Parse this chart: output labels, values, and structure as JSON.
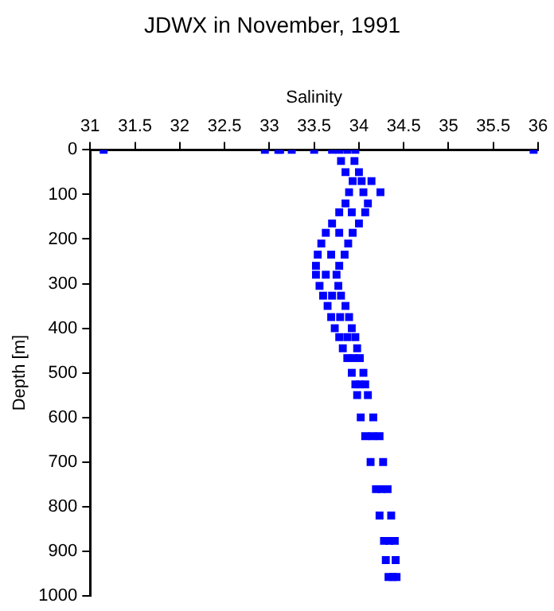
{
  "chart_data": {
    "type": "scatter",
    "title": "JDWX in November, 1991",
    "xlabel": "Salinity",
    "ylabel": "Depth [m]",
    "xlim": [
      31,
      36
    ],
    "xticks": [
      31,
      31.5,
      32,
      32.5,
      33,
      33.5,
      34,
      34.5,
      35,
      35.5,
      36
    ],
    "ylim": [
      1000,
      0
    ],
    "yticks": [
      0,
      100,
      200,
      300,
      400,
      500,
      600,
      700,
      800,
      900,
      1000
    ],
    "grid": false,
    "legend": false,
    "marker": "square",
    "series": [
      {
        "color": "#0000ff",
        "x": [
          31.15,
          32.95,
          33.1,
          33.12,
          33.25,
          33.5,
          33.7,
          35.95,
          33.78,
          33.87,
          33.96,
          33.8,
          33.95,
          33.85,
          34.0,
          33.93,
          34.03,
          34.14,
          33.89,
          34.05,
          34.24,
          33.85,
          34.1,
          33.78,
          33.92,
          34.07,
          33.7,
          34.0,
          33.63,
          33.78,
          33.93,
          33.58,
          33.88,
          33.54,
          33.69,
          33.84,
          33.52,
          33.78,
          33.52,
          33.63,
          33.75,
          33.56,
          33.77,
          33.6,
          33.7,
          33.8,
          33.65,
          33.85,
          33.69,
          33.79,
          33.89,
          33.73,
          33.92,
          33.78,
          33.87,
          33.96,
          33.82,
          33.98,
          33.87,
          33.94,
          34.01,
          33.92,
          34.05,
          33.96,
          34.01,
          34.07,
          33.98,
          34.1,
          34.02,
          34.16,
          34.07,
          34.15,
          34.23,
          34.13,
          34.27,
          34.19,
          34.25,
          34.32,
          34.23,
          34.36,
          34.28,
          34.34,
          34.4,
          34.3,
          34.41,
          34.33,
          34.38,
          34.42
        ],
        "values": [
          0,
          0,
          0,
          0,
          0,
          0,
          0,
          0,
          0,
          0,
          0,
          25,
          25,
          50,
          50,
          70,
          70,
          70,
          95,
          95,
          95,
          120,
          120,
          140,
          140,
          140,
          165,
          165,
          186,
          186,
          186,
          210,
          210,
          235,
          235,
          235,
          260,
          260,
          280,
          280,
          280,
          305,
          305,
          327,
          327,
          327,
          350,
          350,
          375,
          375,
          375,
          400,
          400,
          420,
          420,
          420,
          445,
          445,
          467,
          467,
          467,
          500,
          500,
          526,
          526,
          526,
          550,
          550,
          600,
          600,
          642,
          642,
          642,
          700,
          700,
          761,
          761,
          761,
          820,
          820,
          877,
          877,
          877,
          920,
          920,
          958,
          958,
          958
        ]
      }
    ]
  }
}
